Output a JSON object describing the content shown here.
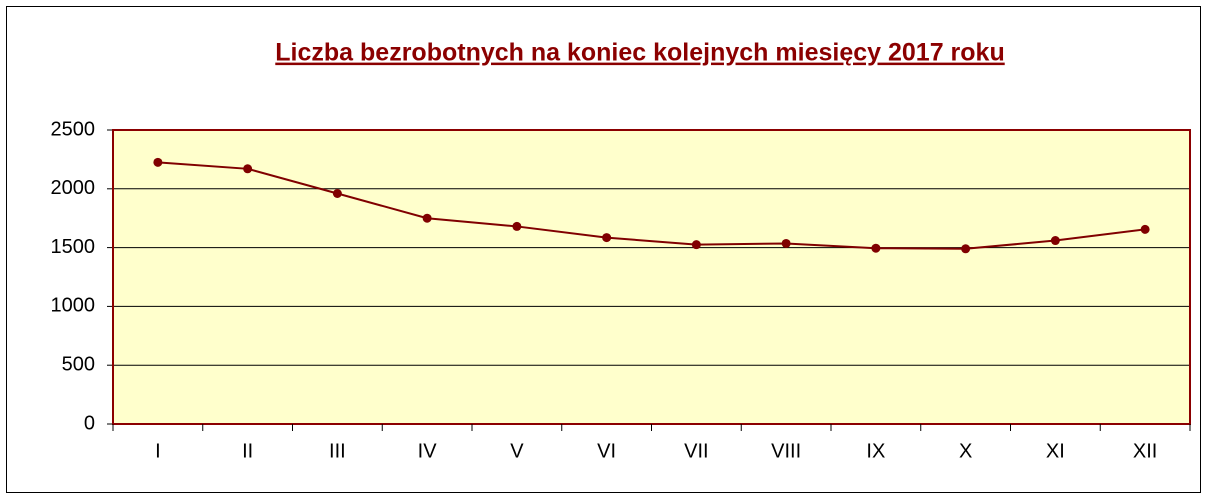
{
  "chart_data": {
    "type": "line",
    "title": "Liczba bezrobotnych na koniec kolejnych miesięcy 2017 roku",
    "categories": [
      "I",
      "II",
      "III",
      "IV",
      "V",
      "VI",
      "VII",
      "VIII",
      "IX",
      "X",
      "XI",
      "XII"
    ],
    "series": [
      {
        "name": "Liczba bezrobotnych",
        "color": "#800000",
        "values": [
          2225,
          2170,
          1960,
          1750,
          1680,
          1585,
          1525,
          1535,
          1495,
          1490,
          1560,
          1655
        ]
      }
    ],
    "ylim": [
      0,
      2500
    ],
    "yticks": [
      0,
      500,
      1000,
      1500,
      2000,
      2500
    ],
    "grid": true,
    "plot_background": "#ffffcc"
  }
}
